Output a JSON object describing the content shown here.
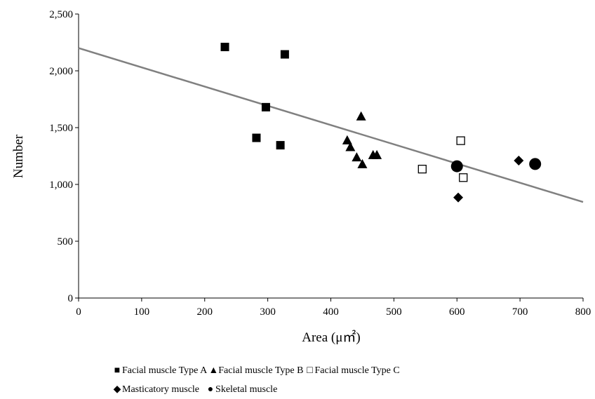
{
  "chart_data": {
    "type": "scatter",
    "xlabel": "Area (μ㎡)",
    "ylabel": "Number",
    "xlim": [
      0,
      800
    ],
    "ylim": [
      0,
      2500
    ],
    "x_ticks": [
      "0",
      "100",
      "200",
      "300",
      "400",
      "500",
      "600",
      "700",
      "800"
    ],
    "y_ticks": [
      "0",
      "500",
      "1,000",
      "1,500",
      "2,000",
      "2,500"
    ],
    "grid": false,
    "legend_position": "bottom",
    "trendline": {
      "type": "linear",
      "from": [
        0,
        2200
      ],
      "to": [
        800,
        845
      ],
      "color": "#808080"
    },
    "series": [
      {
        "name": "Facial muscle Type A",
        "marker": "square-filled",
        "color": "#000000",
        "points": [
          [
            232,
            2210
          ],
          [
            327,
            2145
          ],
          [
            297,
            1680
          ],
          [
            282,
            1410
          ],
          [
            320,
            1345
          ]
        ]
      },
      {
        "name": "Facial muscle Type B",
        "marker": "triangle-filled",
        "color": "#000000",
        "points": [
          [
            448,
            1600
          ],
          [
            426,
            1390
          ],
          [
            431,
            1330
          ],
          [
            441,
            1240
          ],
          [
            450,
            1180
          ],
          [
            467,
            1260
          ],
          [
            473,
            1260
          ]
        ]
      },
      {
        "name": "Facial muscle Type C",
        "marker": "square-open",
        "color": "#000000",
        "points": [
          [
            606,
            1385
          ],
          [
            545,
            1135
          ],
          [
            610,
            1060
          ]
        ]
      },
      {
        "name": "Masticatory muscle",
        "marker": "diamond-filled",
        "color": "#000000",
        "points": [
          [
            698,
            1210
          ],
          [
            602,
            885
          ]
        ]
      },
      {
        "name": "Skeletal muscle",
        "marker": "circle-filled",
        "color": "#000000",
        "points": [
          [
            600,
            1160
          ],
          [
            724,
            1180
          ]
        ]
      }
    ]
  },
  "legend": {
    "row1": [
      {
        "symbol": "■",
        "label": "Facial muscle Type A"
      },
      {
        "symbol": "▲",
        "label": "Facial muscle Type B"
      },
      {
        "symbol": "□",
        "label": "Facial muscle Type C"
      }
    ],
    "row2": [
      {
        "symbol": "◆",
        "label": "Masticatory muscle"
      },
      {
        "symbol": "●",
        "label": "Skeletal muscle"
      }
    ]
  }
}
